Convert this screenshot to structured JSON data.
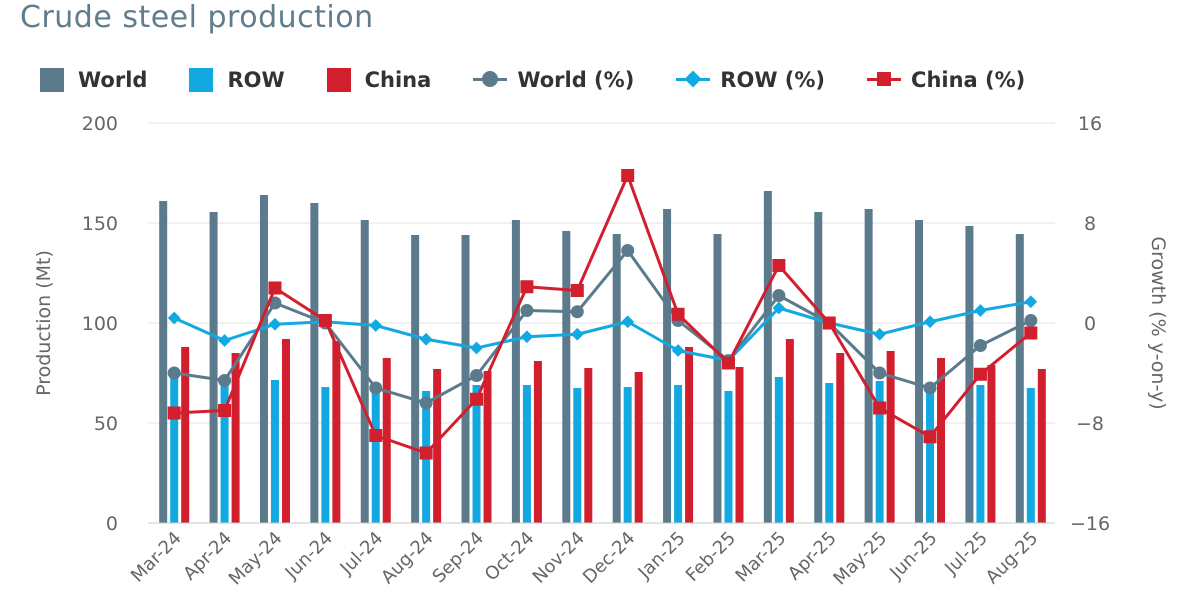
{
  "title": "Crude steel production",
  "colors": {
    "world": "#5b7a8c",
    "row": "#12a9e3",
    "china": "#d21f2e",
    "grid": "#e3e3e3",
    "axis_text": "#666666"
  },
  "legend": [
    {
      "label": "World",
      "kind": "bar",
      "color": "#5b7a8c"
    },
    {
      "label": "ROW",
      "kind": "bar",
      "color": "#12a9e3"
    },
    {
      "label": "China",
      "kind": "bar",
      "color": "#d21f2e"
    },
    {
      "label": "World (%)",
      "kind": "line-circle",
      "color": "#5b7a8c"
    },
    {
      "label": "ROW (%)",
      "kind": "line-diamond",
      "color": "#12a9e3"
    },
    {
      "label": "China (%)",
      "kind": "line-square",
      "color": "#d21f2e"
    }
  ],
  "chart_data": {
    "type": "bar",
    "title": "Crude steel production",
    "categories": [
      "Mar-24",
      "Apr-24",
      "May-24",
      "Jun-24",
      "Jul-24",
      "Aug-24",
      "Sep-24",
      "Oct-24",
      "Nov-24",
      "Dec-24",
      "Jan-25",
      "Feb-25",
      "Mar-25",
      "Apr-25",
      "May-25",
      "Jun-25",
      "Jul-25",
      "Aug-25"
    ],
    "ylabel": "Production (Mt)",
    "y2label": "Growth (% y-on-y)",
    "ylim": [
      0,
      200
    ],
    "yticks": [
      0,
      50,
      100,
      150,
      200
    ],
    "y2lim": [
      -16,
      16
    ],
    "y2ticks": [
      "−16",
      "−8",
      "0",
      "8",
      "16"
    ],
    "y2tick_values": [
      -16,
      -8,
      0,
      8,
      16
    ],
    "grid": true,
    "legend_position": "top-left",
    "series": [
      {
        "name": "World",
        "kind": "bar",
        "axis": "left",
        "color": "#5b7a8c",
        "values": [
          161,
          155.5,
          164,
          160,
          151.5,
          144,
          144,
          151.5,
          146,
          144.5,
          157,
          144.5,
          166,
          155.5,
          157,
          151.5,
          148.5,
          144.5
        ]
      },
      {
        "name": "ROW",
        "kind": "bar",
        "axis": "left",
        "color": "#12a9e3",
        "values": [
          74,
          70,
          71.5,
          68,
          68,
          66,
          69,
          69,
          67.5,
          68,
          69,
          66,
          73,
          70,
          71,
          68.5,
          69,
          67.5
        ]
      },
      {
        "name": "China",
        "kind": "bar",
        "axis": "left",
        "color": "#d21f2e",
        "values": [
          88,
          85,
          92,
          91,
          82.5,
          77,
          76,
          81,
          77.5,
          75.5,
          88,
          78,
          92,
          85,
          86,
          82.5,
          79,
          77
        ]
      },
      {
        "name": "World (%)",
        "kind": "line",
        "marker": "circle",
        "axis": "right",
        "color": "#5b7a8c",
        "values": [
          -4,
          -4.6,
          1.6,
          0,
          -5.2,
          -6.4,
          -4.2,
          1,
          0.9,
          5.8,
          0.2,
          -3,
          2.2,
          0,
          -4,
          -5.2,
          -1.8,
          0.2
        ]
      },
      {
        "name": "ROW (%)",
        "kind": "line",
        "marker": "diamond",
        "axis": "right",
        "color": "#12a9e3",
        "values": [
          0.4,
          -1.4,
          -0.1,
          0.1,
          -0.2,
          -1.3,
          -2,
          -1.1,
          -0.9,
          0.1,
          -2.2,
          -3,
          1.2,
          0,
          -0.9,
          0.1,
          1,
          1.7
        ]
      },
      {
        "name": "China (%)",
        "kind": "line",
        "marker": "square",
        "axis": "right",
        "color": "#d21f2e",
        "values": [
          -7.2,
          -7,
          2.8,
          0.2,
          -9,
          -10.4,
          -6.1,
          2.9,
          2.6,
          11.8,
          0.7,
          -3.2,
          4.6,
          0,
          -6.8,
          -9.1,
          -4.1,
          -0.8
        ]
      }
    ]
  }
}
